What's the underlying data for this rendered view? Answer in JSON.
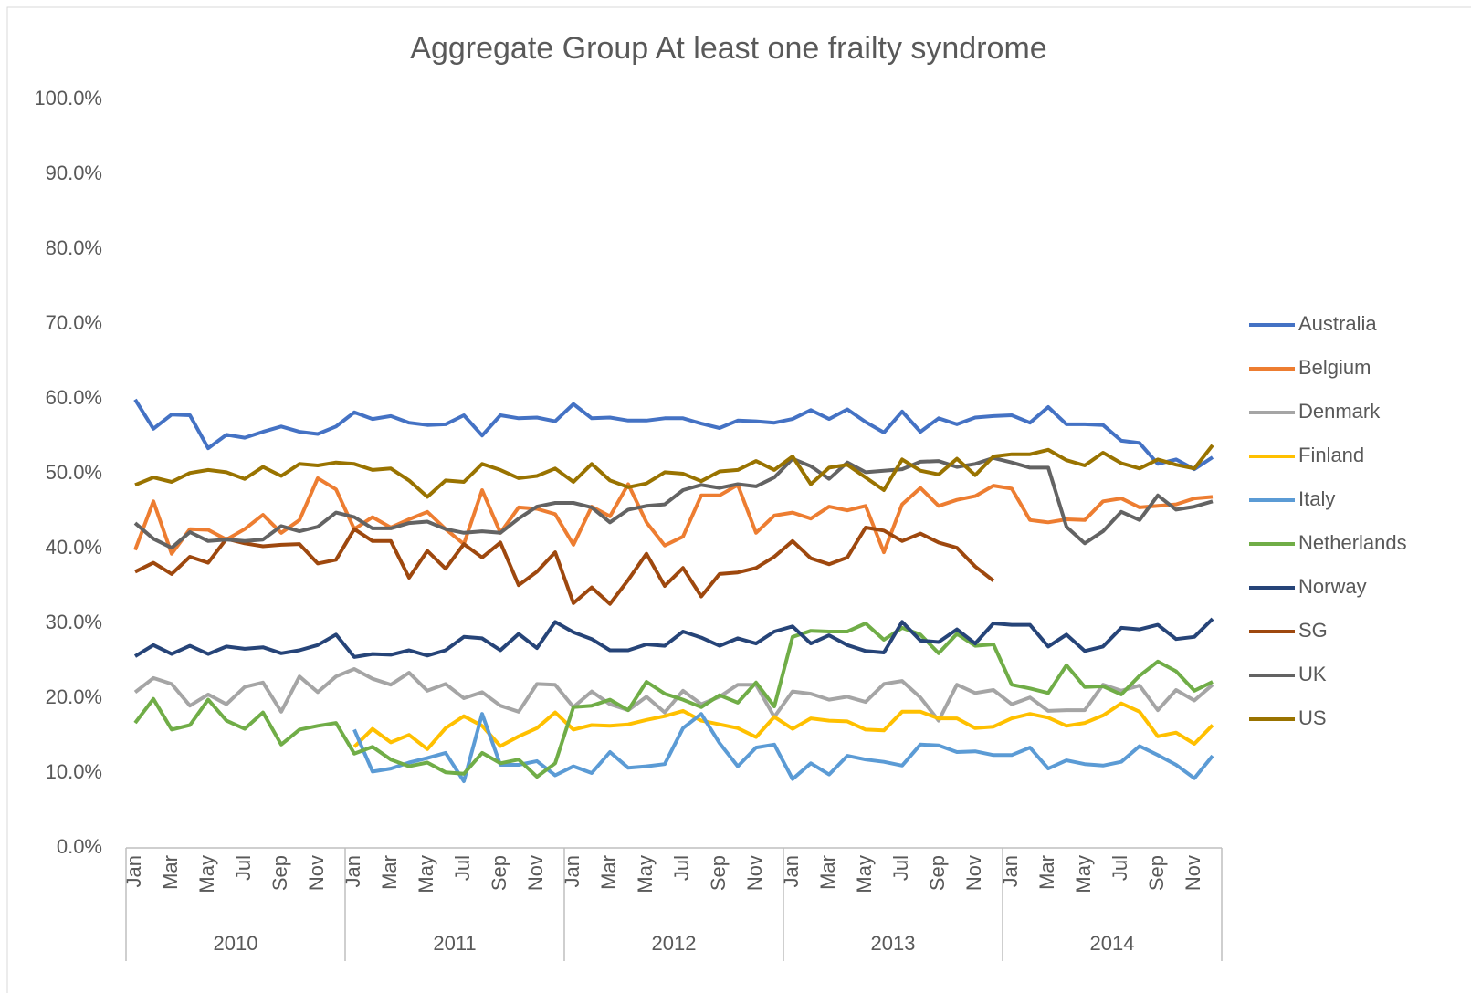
{
  "chart_data": {
    "type": "line",
    "title": "Aggregate Group At least one frailty syndrome",
    "categories": [
      "Jan",
      null,
      "Mar",
      null,
      "May",
      null,
      "Jul",
      null,
      "Sep",
      null,
      "Nov",
      null,
      "Jan",
      null,
      "Mar",
      null,
      "May",
      null,
      "Jul",
      null,
      "Sep",
      null,
      "Nov",
      null,
      "Jan",
      null,
      "Mar",
      null,
      "May",
      null,
      "Jul",
      null,
      "Sep",
      null,
      "Nov",
      null,
      "Jan",
      null,
      "Mar",
      null,
      "May",
      null,
      "Jul",
      null,
      "Sep",
      null,
      "Nov",
      null,
      "Jan",
      null,
      "Mar",
      null,
      "May",
      null,
      "Jul",
      null,
      "Sep",
      null,
      "Nov",
      null
    ],
    "year_groups": [
      "2010",
      "2011",
      "2012",
      "2013",
      "2014"
    ],
    "ylim": [
      0,
      100
    ],
    "yticks": [
      {
        "value": 0,
        "label": "0.0%"
      },
      {
        "value": 10,
        "label": "10.0%"
      },
      {
        "value": 20,
        "label": "20.0%"
      },
      {
        "value": 30,
        "label": "30.0%"
      },
      {
        "value": 40,
        "label": "40.0%"
      },
      {
        "value": 50,
        "label": "50.0%"
      },
      {
        "value": 60,
        "label": "60.0%"
      },
      {
        "value": 70,
        "label": "70.0%"
      },
      {
        "value": 80,
        "label": "80.0%"
      },
      {
        "value": 90,
        "label": "90.0%"
      },
      {
        "value": 100,
        "label": "100.0%"
      }
    ],
    "grid": false,
    "legend": "right",
    "series": [
      {
        "name": "Australia",
        "color": "#4472c4",
        "values": [
          59.9,
          56.0,
          57.9,
          57.8,
          53.4,
          55.2,
          54.8,
          55.6,
          56.3,
          55.6,
          55.3,
          56.3,
          58.2,
          57.3,
          57.7,
          56.8,
          56.5,
          56.6,
          57.8,
          55.1,
          57.8,
          57.4,
          57.5,
          57.0,
          59.3,
          57.4,
          57.5,
          57.1,
          57.1,
          57.4,
          57.4,
          56.7,
          56.1,
          57.1,
          57.0,
          56.8,
          57.3,
          58.5,
          57.3,
          58.6,
          56.9,
          55.5,
          58.3,
          55.6,
          57.4,
          56.6,
          57.5,
          57.7,
          57.8,
          56.8,
          58.9,
          56.6,
          56.6,
          56.5,
          54.4,
          54.1,
          51.3,
          51.9,
          50.6,
          52.2
        ]
      },
      {
        "name": "Belgium",
        "color": "#ed7d31",
        "values": [
          39.8,
          46.3,
          39.3,
          42.6,
          42.5,
          41.2,
          42.6,
          44.5,
          42.1,
          43.8,
          49.4,
          47.9,
          42.6,
          44.2,
          42.8,
          43.9,
          44.9,
          42.6,
          40.6,
          47.8,
          42.1,
          45.5,
          45.3,
          44.6,
          40.5,
          45.6,
          44.3,
          48.6,
          43.5,
          40.4,
          41.6,
          47.1,
          47.1,
          48.5,
          42.1,
          44.4,
          44.8,
          44.0,
          45.6,
          45.1,
          45.7,
          39.5,
          45.9,
          48.1,
          45.7,
          46.5,
          47.0,
          48.4,
          48.0,
          43.8,
          43.5,
          43.9,
          43.8,
          46.3,
          46.7,
          45.5,
          45.7,
          45.9,
          46.7,
          46.9
        ]
      },
      {
        "name": "Denmark",
        "color": "#a5a5a5",
        "values": [
          20.8,
          22.7,
          21.9,
          19.0,
          20.5,
          19.2,
          21.5,
          22.1,
          18.2,
          22.9,
          20.8,
          22.9,
          23.9,
          22.6,
          21.8,
          23.4,
          21.0,
          21.9,
          20.0,
          20.8,
          19.0,
          18.2,
          21.9,
          21.8,
          18.8,
          20.9,
          19.2,
          18.4,
          20.2,
          18.1,
          21.0,
          19.2,
          20.2,
          21.8,
          21.8,
          17.5,
          20.9,
          20.6,
          19.8,
          20.2,
          19.5,
          21.9,
          22.3,
          20.1,
          17.0,
          21.8,
          20.7,
          21.1,
          19.2,
          20.1,
          18.3,
          18.4,
          18.4,
          21.8,
          21.0,
          21.7,
          18.4,
          21.1,
          19.7,
          21.8
        ]
      },
      {
        "name": "Finland",
        "color": "#ffc000",
        "values": [
          null,
          null,
          null,
          null,
          null,
          null,
          null,
          null,
          null,
          null,
          null,
          null,
          13.5,
          15.9,
          14.1,
          15.1,
          13.2,
          16.0,
          17.6,
          16.3,
          13.6,
          14.9,
          16.0,
          18.1,
          15.8,
          16.4,
          16.3,
          16.5,
          17.1,
          17.6,
          18.3,
          17.0,
          16.5,
          16.0,
          14.8,
          17.5,
          15.9,
          17.3,
          17.0,
          16.9,
          15.8,
          15.7,
          18.2,
          18.2,
          17.3,
          17.3,
          16.0,
          16.2,
          17.3,
          17.9,
          17.4,
          16.3,
          16.7,
          17.7,
          19.3,
          18.2,
          14.9,
          15.4,
          13.9,
          16.4
        ]
      },
      {
        "name": "Italy",
        "color": "#5b9bd5",
        "values": [
          null,
          null,
          null,
          null,
          null,
          null,
          null,
          null,
          null,
          null,
          null,
          null,
          15.8,
          10.2,
          10.6,
          11.4,
          12.0,
          12.7,
          8.9,
          17.9,
          11.1,
          11.1,
          11.6,
          9.7,
          10.9,
          10.0,
          12.8,
          10.7,
          10.9,
          11.2,
          16.0,
          17.9,
          14.0,
          10.9,
          13.4,
          13.8,
          9.2,
          11.3,
          9.8,
          12.3,
          11.8,
          11.5,
          11.0,
          13.8,
          13.7,
          12.8,
          12.9,
          12.4,
          12.4,
          13.4,
          10.6,
          11.7,
          11.2,
          11.0,
          11.5,
          13.6,
          12.4,
          11.1,
          9.3,
          12.3
        ]
      },
      {
        "name": "Netherlands",
        "color": "#70ad47",
        "values": [
          16.7,
          19.9,
          15.8,
          16.4,
          19.8,
          17.0,
          15.9,
          18.1,
          13.8,
          15.8,
          16.3,
          16.7,
          12.6,
          13.5,
          11.8,
          10.9,
          11.4,
          10.1,
          9.9,
          12.7,
          11.3,
          11.8,
          9.5,
          11.3,
          18.8,
          19.0,
          19.8,
          18.4,
          22.2,
          20.6,
          19.8,
          18.8,
          20.4,
          19.4,
          22.1,
          18.9,
          28.2,
          29.0,
          28.9,
          28.9,
          30.0,
          27.8,
          29.4,
          28.5,
          26.0,
          28.6,
          27.0,
          27.2,
          21.8,
          21.3,
          20.7,
          24.4,
          21.5,
          21.6,
          20.5,
          23.0,
          24.9,
          23.6,
          21.0,
          22.2
        ]
      },
      {
        "name": "Norway",
        "color": "#264478",
        "values": [
          25.6,
          27.1,
          25.9,
          27.0,
          25.9,
          26.9,
          26.6,
          26.8,
          26.0,
          26.4,
          27.1,
          28.5,
          25.5,
          25.9,
          25.8,
          26.4,
          25.7,
          26.4,
          28.2,
          28.0,
          26.4,
          28.6,
          26.7,
          30.2,
          28.8,
          27.9,
          26.4,
          26.4,
          27.2,
          27.0,
          28.9,
          28.1,
          27.0,
          28.0,
          27.3,
          28.9,
          29.6,
          27.3,
          28.4,
          27.1,
          26.3,
          26.1,
          30.2,
          27.7,
          27.5,
          29.2,
          27.3,
          30.0,
          29.8,
          29.8,
          26.9,
          28.5,
          26.3,
          26.9,
          29.4,
          29.2,
          29.8,
          27.9,
          28.2,
          30.6
        ]
      },
      {
        "name": "SG",
        "color": "#9e480e",
        "values": [
          36.9,
          38.1,
          36.6,
          38.9,
          38.1,
          41.3,
          40.7,
          40.3,
          40.5,
          40.6,
          38.0,
          38.5,
          42.6,
          41.0,
          41.0,
          36.1,
          39.7,
          37.3,
          40.6,
          38.8,
          40.8,
          35.1,
          36.9,
          39.5,
          32.7,
          34.8,
          32.6,
          35.8,
          39.3,
          35.0,
          37.4,
          33.6,
          36.6,
          36.8,
          37.4,
          38.9,
          41.0,
          38.7,
          37.9,
          38.8,
          42.8,
          42.4,
          41.0,
          42.0,
          40.8,
          40.1,
          37.6,
          35.7,
          null,
          null,
          null,
          null,
          null,
          null,
          null,
          null,
          null,
          null,
          null,
          null
        ]
      },
      {
        "name": "UK",
        "color": "#636363",
        "values": [
          43.4,
          41.3,
          40.1,
          42.2,
          41.0,
          41.2,
          41.0,
          41.2,
          43.0,
          42.3,
          42.9,
          44.8,
          44.2,
          42.7,
          42.7,
          43.4,
          43.6,
          42.6,
          42.1,
          42.3,
          42.1,
          44.0,
          45.6,
          46.1,
          46.1,
          45.5,
          43.5,
          45.2,
          45.7,
          45.9,
          47.8,
          48.5,
          48.1,
          48.6,
          48.3,
          49.5,
          52.0,
          51.0,
          49.3,
          51.5,
          50.2,
          50.4,
          50.6,
          51.6,
          51.7,
          50.9,
          51.3,
          52.1,
          51.5,
          50.8,
          50.8,
          42.9,
          40.7,
          42.3,
          44.9,
          43.8,
          47.1,
          45.2,
          45.6,
          46.3
        ]
      },
      {
        "name": "US",
        "color": "#997300",
        "values": [
          48.5,
          49.5,
          48.9,
          50.1,
          50.5,
          50.2,
          49.3,
          50.9,
          49.7,
          51.3,
          51.1,
          51.5,
          51.3,
          50.5,
          50.7,
          49.1,
          46.9,
          49.1,
          48.9,
          51.3,
          50.5,
          49.4,
          49.7,
          50.7,
          48.9,
          51.3,
          49.1,
          48.2,
          48.7,
          50.2,
          50.0,
          49.0,
          50.3,
          50.5,
          51.7,
          50.5,
          52.3,
          48.6,
          50.8,
          51.2,
          49.5,
          47.8,
          51.9,
          50.4,
          49.9,
          52.0,
          49.8,
          52.3,
          52.6,
          52.6,
          53.2,
          51.8,
          51.1,
          52.8,
          51.4,
          50.7,
          51.9,
          51.2,
          50.7,
          53.8
        ]
      }
    ]
  }
}
